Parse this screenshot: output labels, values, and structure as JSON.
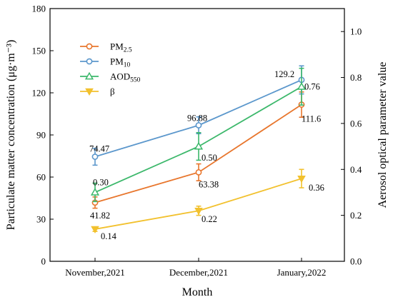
{
  "chart_data": {
    "type": "line",
    "categories": [
      "November,2021",
      "December,2021",
      "January,2022"
    ],
    "xlabel": "Month",
    "ylabel_left": "Particulate matter concentration (μg·m⁻³)",
    "ylabel_right": "Aerosol optical parameter value",
    "ylim_left": [
      0,
      180
    ],
    "yticks_left": [
      0,
      30,
      60,
      90,
      120,
      150,
      180
    ],
    "ylim_right": [
      0.0,
      1.1
    ],
    "yticks_right": [
      "0.0",
      "0.2",
      "0.4",
      "0.6",
      "0.8",
      "1.0"
    ],
    "grid": false,
    "legend_position": "top-left",
    "series": [
      {
        "name": "PM2.5",
        "legend_main": "PM",
        "legend_sub": "2.5",
        "axis": "left",
        "color": "#E8762D",
        "marker": "circle",
        "values": [
          41.82,
          63.38,
          111.6
        ],
        "errors": [
          4,
          6,
          9
        ],
        "labels": [
          "41.82",
          "63.38",
          "111.6"
        ]
      },
      {
        "name": "PM10",
        "legend_main": "PM",
        "legend_sub": "10",
        "axis": "left",
        "color": "#5B97CC",
        "marker": "circle",
        "values": [
          74.47,
          96.88,
          129.2
        ],
        "errors": [
          6,
          6,
          10
        ],
        "labels": [
          "74.47",
          "96.88",
          "129.2"
        ]
      },
      {
        "name": "AOD550",
        "legend_main": "AOD",
        "legend_sub": "550",
        "axis": "right",
        "color": "#3CB86B",
        "marker": "triangle-up",
        "values": [
          0.3,
          0.5,
          0.76
        ],
        "errors": [
          0.04,
          0.06,
          0.08
        ],
        "labels": [
          "0.30",
          "0.50",
          "0.76"
        ]
      },
      {
        "name": "β",
        "legend_main": "β",
        "legend_sub": "",
        "axis": "right",
        "color": "#F2C12E",
        "marker": "triangle-down",
        "values": [
          0.14,
          0.22,
          0.36
        ],
        "errors": [
          0.01,
          0.02,
          0.04
        ],
        "labels": [
          "0.14",
          "0.22",
          "0.36"
        ]
      }
    ]
  }
}
